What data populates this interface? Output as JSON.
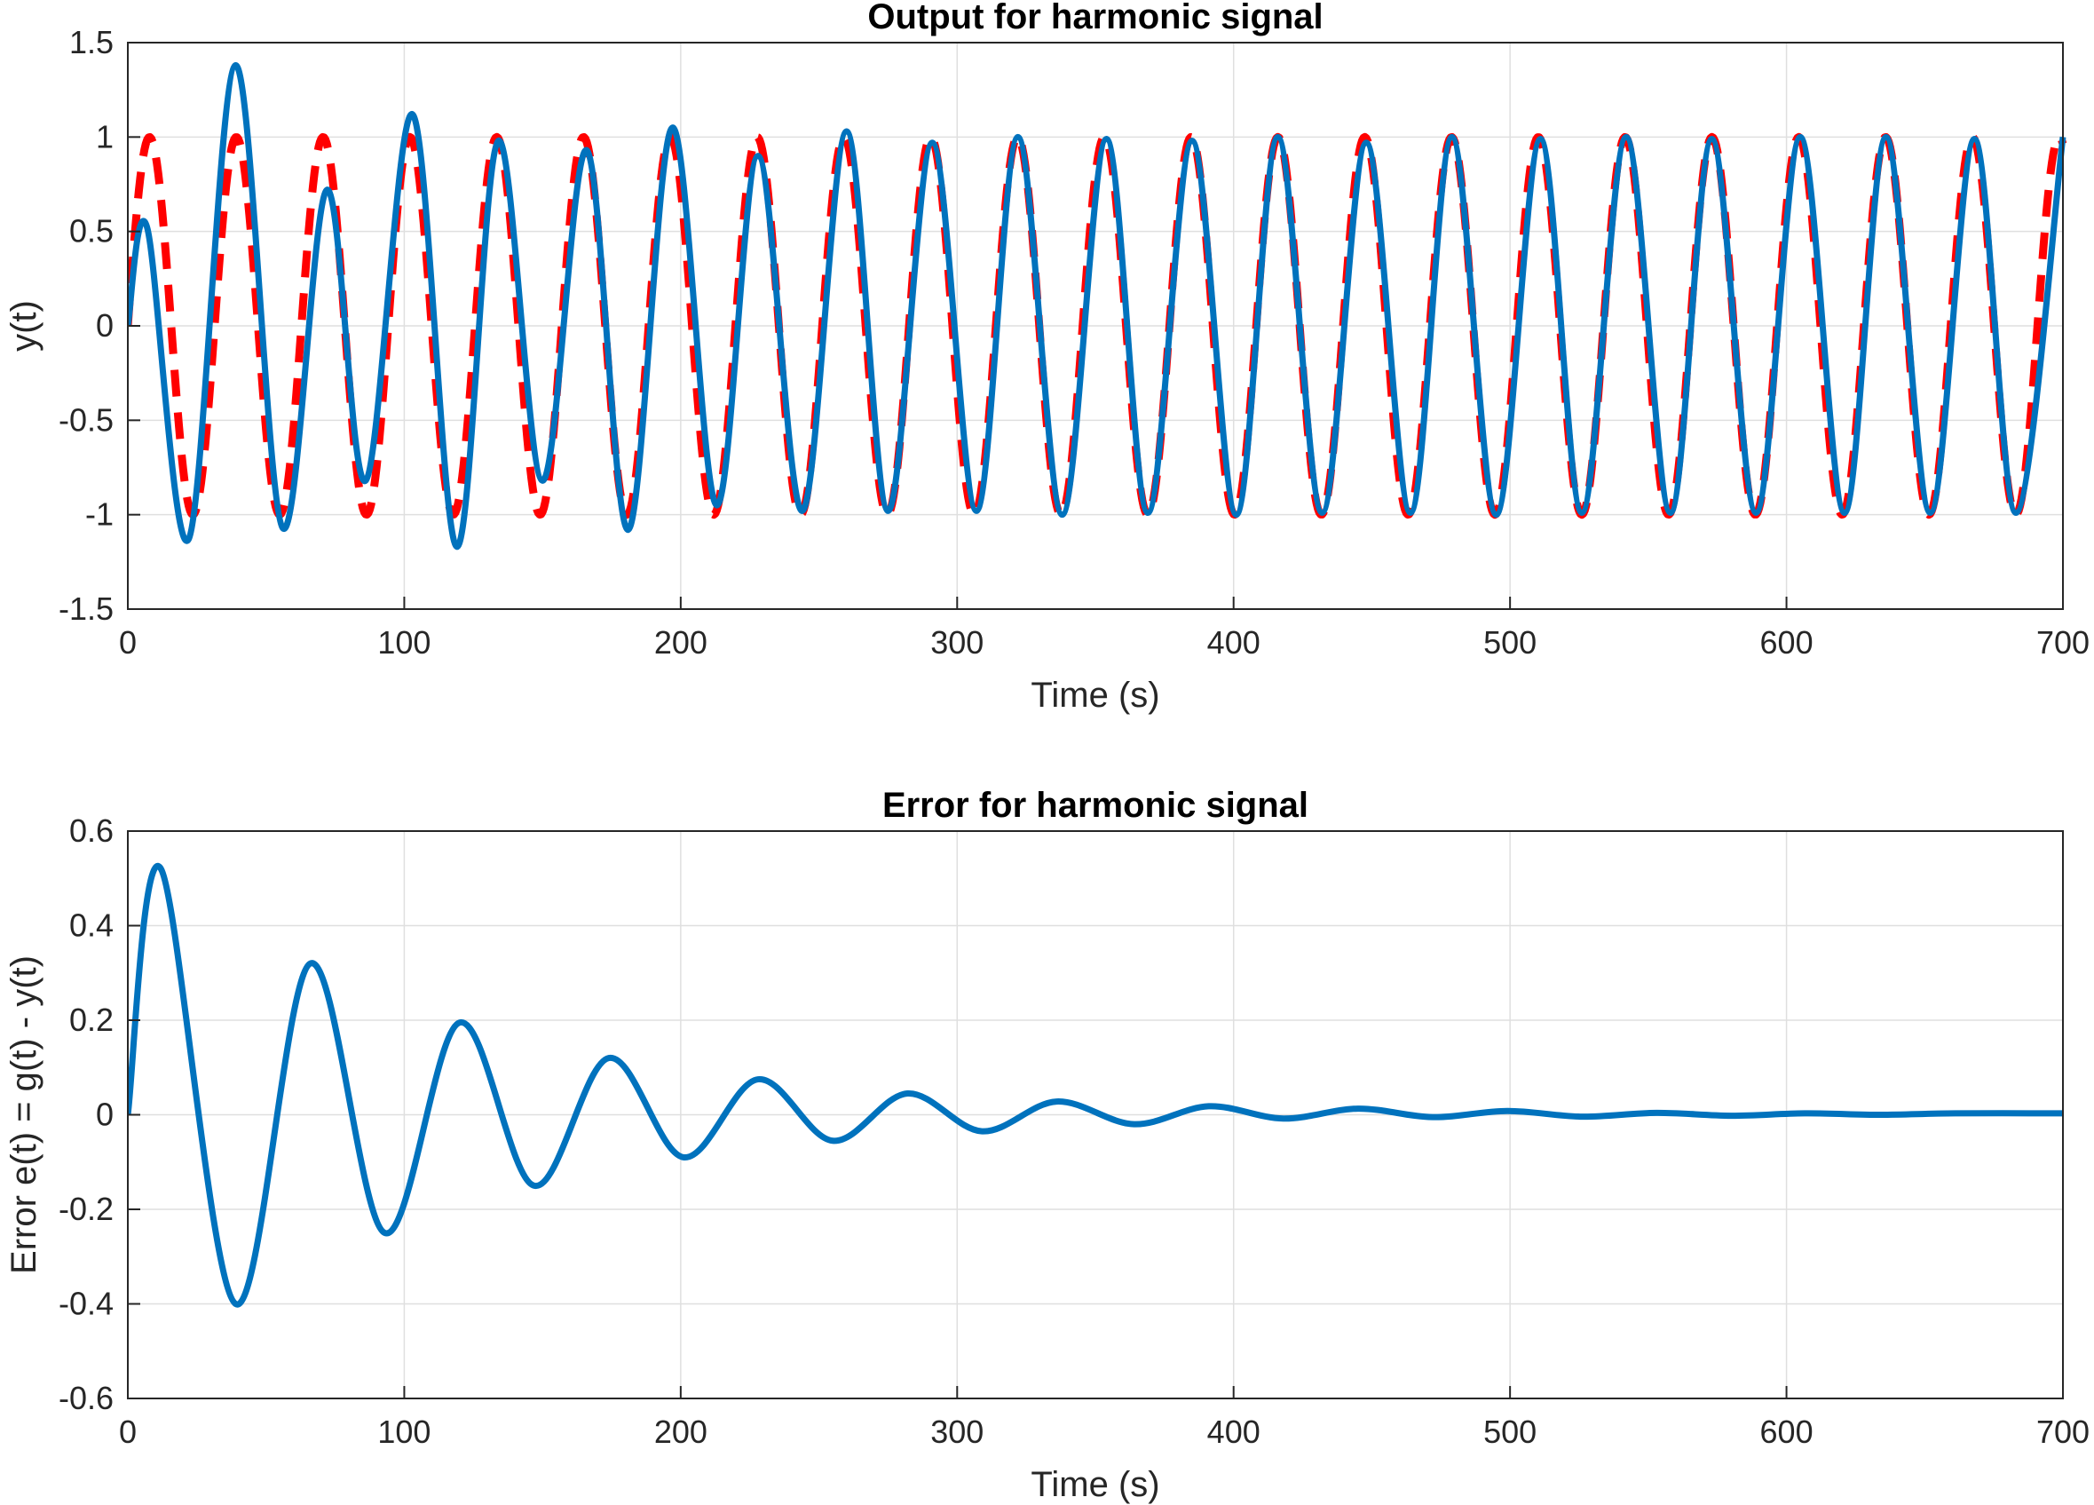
{
  "chart_data": [
    {
      "type": "line",
      "title": "Output for harmonic signal",
      "xlabel": "Time (s)",
      "ylabel": "y(t)",
      "xlim": [
        0,
        700
      ],
      "ylim": [
        -1.5,
        1.5
      ],
      "xticks": [
        "0",
        "100",
        "200",
        "300",
        "400",
        "500",
        "600",
        "700"
      ],
      "yticks": [
        "-1.5",
        "-1",
        "-0.5",
        "0",
        "0.5",
        "1",
        "1.5"
      ],
      "grid": true,
      "series": [
        {
          "role": "reference",
          "color": "#ff0000",
          "style": "dashed",
          "function": "sin",
          "amplitude": 1.0,
          "period": 31.4
        },
        {
          "role": "output",
          "color": "#0072bd",
          "style": "solid",
          "x": [
            0,
            7,
            22,
            39,
            56,
            72,
            86,
            103,
            119,
            134,
            150,
            166,
            181,
            197,
            213,
            228,
            244,
            260,
            275,
            291,
            307,
            322,
            338,
            354,
            369,
            385,
            401,
            416,
            432,
            448,
            464,
            479,
            495,
            511,
            526,
            542,
            558,
            573,
            589,
            605,
            621,
            636,
            652,
            668,
            683,
            700
          ],
          "y": [
            0,
            0.52,
            -1.13,
            1.38,
            -1.07,
            0.72,
            -0.82,
            1.12,
            -1.17,
            0.98,
            -0.82,
            0.93,
            -1.08,
            1.05,
            -0.95,
            0.9,
            -0.98,
            1.03,
            -0.98,
            0.97,
            -0.98,
            1.0,
            -1.0,
            0.99,
            -0.99,
            0.98,
            -1.0,
            1.0,
            -0.99,
            0.97,
            -0.99,
            1.0,
            -1.0,
            0.99,
            -0.99,
            1.0,
            -0.99,
            0.99,
            -0.99,
            1.0,
            -0.99,
            1.0,
            -0.99,
            0.99,
            -0.99,
            1.0
          ]
        }
      ]
    },
    {
      "type": "line",
      "title": "Error for harmonic signal",
      "xlabel": "Time (s)",
      "ylabel": "Error e(t) = g(t) - y(t)",
      "xlim": [
        0,
        700
      ],
      "ylim": [
        -0.6,
        0.6
      ],
      "xticks": [
        "0",
        "100",
        "200",
        "300",
        "400",
        "500",
        "600",
        "700"
      ],
      "yticks": [
        "-0.6",
        "-0.4",
        "-0.2",
        "0",
        "0.2",
        "0.4",
        "0.6"
      ],
      "grid": true,
      "series": [
        {
          "role": "error",
          "color": "#0072bd",
          "style": "solid",
          "x": [
            0,
            12,
            39,
            66,
            93,
            120,
            147,
            174,
            201,
            228,
            255,
            282,
            309,
            336,
            364,
            391,
            418,
            445,
            472,
            499,
            526,
            553,
            580,
            607,
            634,
            661,
            700
          ],
          "y": [
            0,
            0.52,
            -0.4,
            0.32,
            -0.25,
            0.195,
            -0.15,
            0.12,
            -0.09,
            0.075,
            -0.055,
            0.045,
            -0.035,
            0.028,
            -0.02,
            0.018,
            -0.008,
            0.013,
            -0.005,
            0.008,
            -0.004,
            0.004,
            -0.002,
            0.003,
            0.0,
            0.003,
            0.003
          ]
        }
      ]
    }
  ]
}
